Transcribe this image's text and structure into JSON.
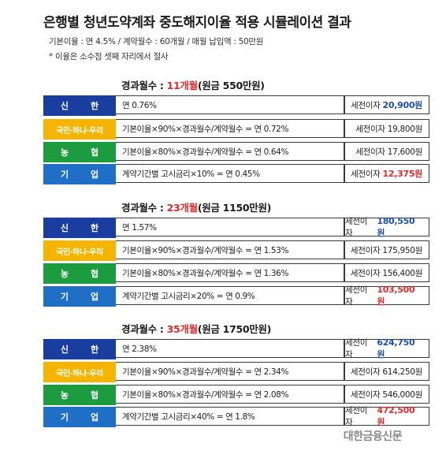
{
  "title": "은행별 청년도약계좌 중도해지이율 적용 시뮬레이션 결과",
  "notes": [
    "기본이율 : 연 4.5% / 계약월수 : 60개월 / 매월 납입액 : 50만원",
    "* 이율은 소수점 셋째 자리에서 절사"
  ],
  "colors": {
    "highlight": "#e02b2b",
    "shinhan": "#1a3ea0",
    "kookmin": "#f5b400",
    "nh": "#1d9b3f",
    "ibk": "#1f6fc7"
  },
  "sections": [
    {
      "prefix": "경과월수 : ",
      "months": "11개월",
      "principal": "(원금 550만원)",
      "rows": [
        {
          "bank1": "신",
          "bank2": "한",
          "formula": "연 0.76%",
          "label": "세전이자",
          "amount": "20,900원"
        },
        {
          "bank": "국민·하나·우리",
          "formula": "기본이율×90%×경과월수/계약월수 = 연 0.72%",
          "label": "세전이자",
          "amount": "19,800원"
        },
        {
          "bank1": "농",
          "bank2": "협",
          "formula": "기본이율×80%×경과월수/계약월수 = 연 0.64%",
          "label": "세전이자",
          "amount": "17,600원"
        },
        {
          "bank1": "기",
          "bank2": "업",
          "formula": "계약기간별 고시금리×10% = 연 0.45%",
          "label": "세전이자",
          "amount": "12,375원"
        }
      ]
    },
    {
      "prefix": "경과월수 : ",
      "months": "23개월",
      "principal": "(원금 1150만원)",
      "rows": [
        {
          "bank1": "신",
          "bank2": "한",
          "formula": "연 1.57%",
          "label": "세전이자",
          "amount": "180,550원"
        },
        {
          "bank": "국민·하나·우리",
          "formula": "기본이율×90%×경과월수/계약월수 = 연 1.53%",
          "label": "세전이자",
          "amount": "175,950원"
        },
        {
          "bank1": "농",
          "bank2": "협",
          "formula": "기본이율×80%×경과월수/계약월수 = 연 1.36%",
          "label": "세전이자",
          "amount": "156,400원"
        },
        {
          "bank1": "기",
          "bank2": "업",
          "formula": "계약기간별 고시금리×20% = 연 0.9%",
          "label": "세전이자",
          "amount": "103,500원"
        }
      ]
    },
    {
      "prefix": "경과월수 : ",
      "months": "35개월",
      "principal": "(원금 1750만원)",
      "rows": [
        {
          "bank1": "신",
          "bank2": "한",
          "formula": "연 2.38%",
          "label": "세전이자",
          "amount": "624,750원"
        },
        {
          "bank": "국민·하나·우리",
          "formula": "기본이율×90%×경과월수/계약월수 = 연 2.34%",
          "label": "세전이자",
          "amount": "614,250원"
        },
        {
          "bank1": "농",
          "bank2": "협",
          "formula": "기본이율×80%×경과월수/계약월수 = 연 2.08%",
          "label": "세전이자",
          "amount": "546,000원"
        },
        {
          "bank1": "기",
          "bank2": "업",
          "formula": "계약기간별 고시금리×40% = 연 1.8%",
          "label": "세전이자",
          "amount": "472,500원"
        }
      ]
    }
  ],
  "footer": "대한금융신문"
}
